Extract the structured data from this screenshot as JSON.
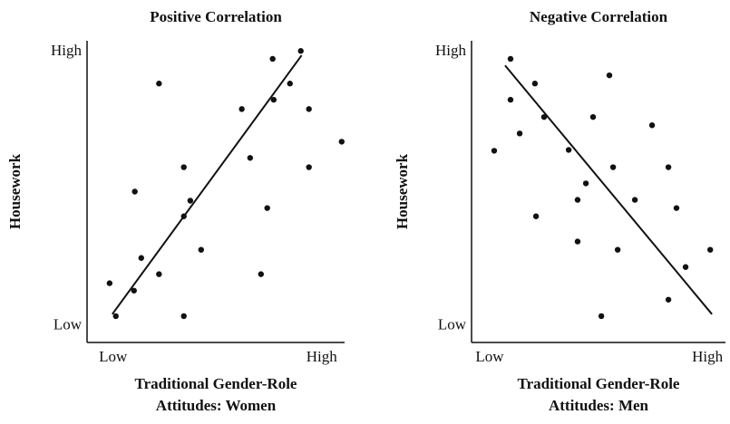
{
  "chart_data": [
    {
      "type": "scatter",
      "title": "Positive Correlation",
      "y_label": "Housework",
      "x_label": [
        "Traditional Gender-Role",
        "Attitudes: Women"
      ],
      "x": [
        -0.17,
        0.13,
        1.0,
        1.04,
        1.35,
        2.2,
        2.2,
        3.39,
        3.39,
        3.39,
        3.7,
        4.22,
        6.17,
        6.57,
        7.09,
        7.39,
        7.65,
        7.7,
        8.48,
        9.0,
        9.39,
        9.39,
        10.96
      ],
      "y": [
        1.56,
        0.36,
        1.29,
        4.9,
        2.48,
        8.84,
        1.89,
        5.79,
        4.0,
        0.36,
        4.57,
        2.78,
        7.91,
        6.13,
        1.89,
        4.3,
        9.74,
        8.25,
        8.84,
        10.03,
        7.91,
        5.79,
        6.72
      ],
      "trend": {
        "x": [
          -0.04,
          9.04
        ],
        "y": [
          0.43,
          9.87
        ]
      },
      "color": "#111111",
      "xlim": [
        -1.25,
        11.1
      ],
      "ylim": [
        -0.6,
        10.4
      ],
      "xticks": [
        {
          "value": 0,
          "label": "Low"
        },
        {
          "value": 10,
          "label": "High"
        }
      ],
      "yticks": [
        {
          "value": 0,
          "label": "Low"
        },
        {
          "value": 10,
          "label": "High"
        }
      ]
    },
    {
      "type": "scatter",
      "title": "Negative Correlation",
      "y_label": "Housework",
      "x_label": [
        "Traditional Gender-Role",
        "Attitudes: Men"
      ],
      "x": [
        0.21,
        0.96,
        0.96,
        1.38,
        2.08,
        2.13,
        2.5,
        3.63,
        4.04,
        4.04,
        4.42,
        4.75,
        5.13,
        5.5,
        5.67,
        5.88,
        6.67,
        7.46,
        8.21,
        8.21,
        8.58,
        9.0,
        10.13
      ],
      "y": [
        6.39,
        9.74,
        8.25,
        7.02,
        8.84,
        4.0,
        7.62,
        6.42,
        4.6,
        3.08,
        5.2,
        7.62,
        0.36,
        9.14,
        5.79,
        2.78,
        4.6,
        7.32,
        5.79,
        0.96,
        4.3,
        2.15,
        2.78
      ],
      "trend": {
        "x": [
          0.71,
          10.21
        ],
        "y": [
          9.5,
          0.43
        ]
      },
      "color": "#111111",
      "xlim": [
        -0.83,
        10.83
      ],
      "ylim": [
        -0.6,
        10.4
      ],
      "xticks": [
        {
          "value": 0,
          "label": "Low"
        },
        {
          "value": 10,
          "label": "High"
        }
      ],
      "yticks": [
        {
          "value": 0,
          "label": "Low"
        },
        {
          "value": 10,
          "label": "High"
        }
      ]
    }
  ]
}
